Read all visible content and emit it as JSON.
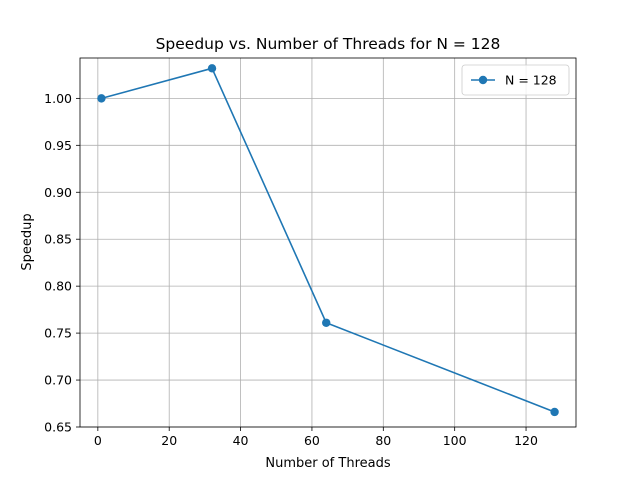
{
  "chart_data": {
    "type": "line",
    "title": "Speedup vs. Number of Threads for N = 128",
    "xlabel": "Number of Threads",
    "ylabel": "Speedup",
    "xlim": [
      -5,
      134
    ],
    "ylim": [
      0.65,
      1.043
    ],
    "xticks": [
      0,
      20,
      40,
      60,
      80,
      100,
      120
    ],
    "yticks": [
      0.65,
      0.7,
      0.75,
      0.8,
      0.85,
      0.9,
      0.95,
      1.0
    ],
    "ytick_labels": [
      "0.65",
      "0.70",
      "0.75",
      "0.80",
      "0.85",
      "0.90",
      "0.95",
      "1.00"
    ],
    "grid": true,
    "legend_position": "top-right",
    "series": [
      {
        "name": "N = 128",
        "color": "#1f77b4",
        "marker": "circle",
        "x": [
          1,
          32,
          64,
          128
        ],
        "y": [
          1.0,
          1.032,
          0.761,
          0.666
        ]
      }
    ]
  }
}
